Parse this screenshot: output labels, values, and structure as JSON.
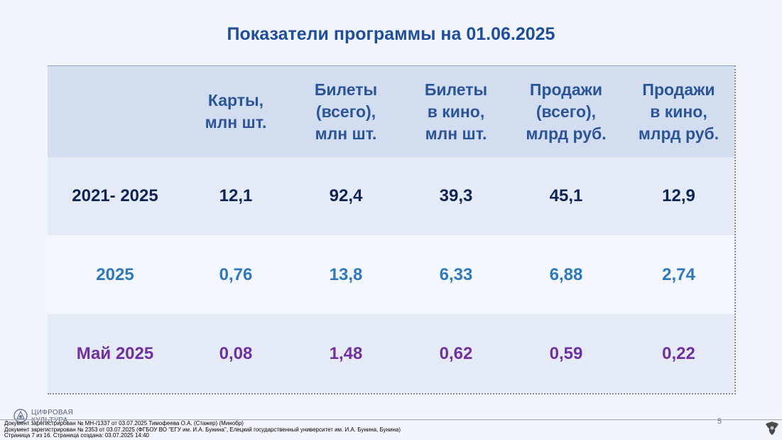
{
  "title": "Показатели программы на 01.06.2025",
  "table": {
    "headers": [
      "",
      "Карты,\nмлн шт.",
      "Билеты\n(всего),\nмлн шт.",
      "Билеты\nв кино,\nмлн шт.",
      "Продажи\n(всего),\nмлрд руб.",
      "Продажи\nв кино,\nмлрд руб."
    ],
    "rows": [
      [
        "2021- 2025",
        "12,1",
        "92,4",
        "39,3",
        "45,1",
        "12,9"
      ],
      [
        "2025",
        "0,76",
        "13,8",
        "6,33",
        "6,88",
        "2,74"
      ],
      [
        "Май 2025",
        "0,08",
        "1,48",
        "0,62",
        "0,59",
        "0,22"
      ]
    ]
  },
  "colors": {
    "title": "#1f4e9a",
    "header_text": "#2b5597",
    "row1_text": "#0f2451",
    "row2_text": "#2f78bb",
    "row3_text": "#7030a0"
  },
  "footer": {
    "logo_text_line1": "ЦИФРОВАЯ",
    "logo_text_line2": "КУЛЬТУРА",
    "logo_icon": "digital-culture-logo-icon",
    "page_number": "5",
    "emblem_icon": "coat-of-arms-icon",
    "stamp_lines": [
      "Документ зарегистрирован № МН-/1337 от 03.07.2025 Тимофеева О.А. (Стажер) (Минобр)",
      "Документ зарегистрирован № 2353 от 03.07.2025  (ФГБОУ ВО \"ЕГУ им. И.А. Бунина\", Елецкий государственный университет им. И.А. Бунина, Бунина)",
      "Страница 7 из 16. Страница создана: 03.07.2025 14:40"
    ]
  }
}
